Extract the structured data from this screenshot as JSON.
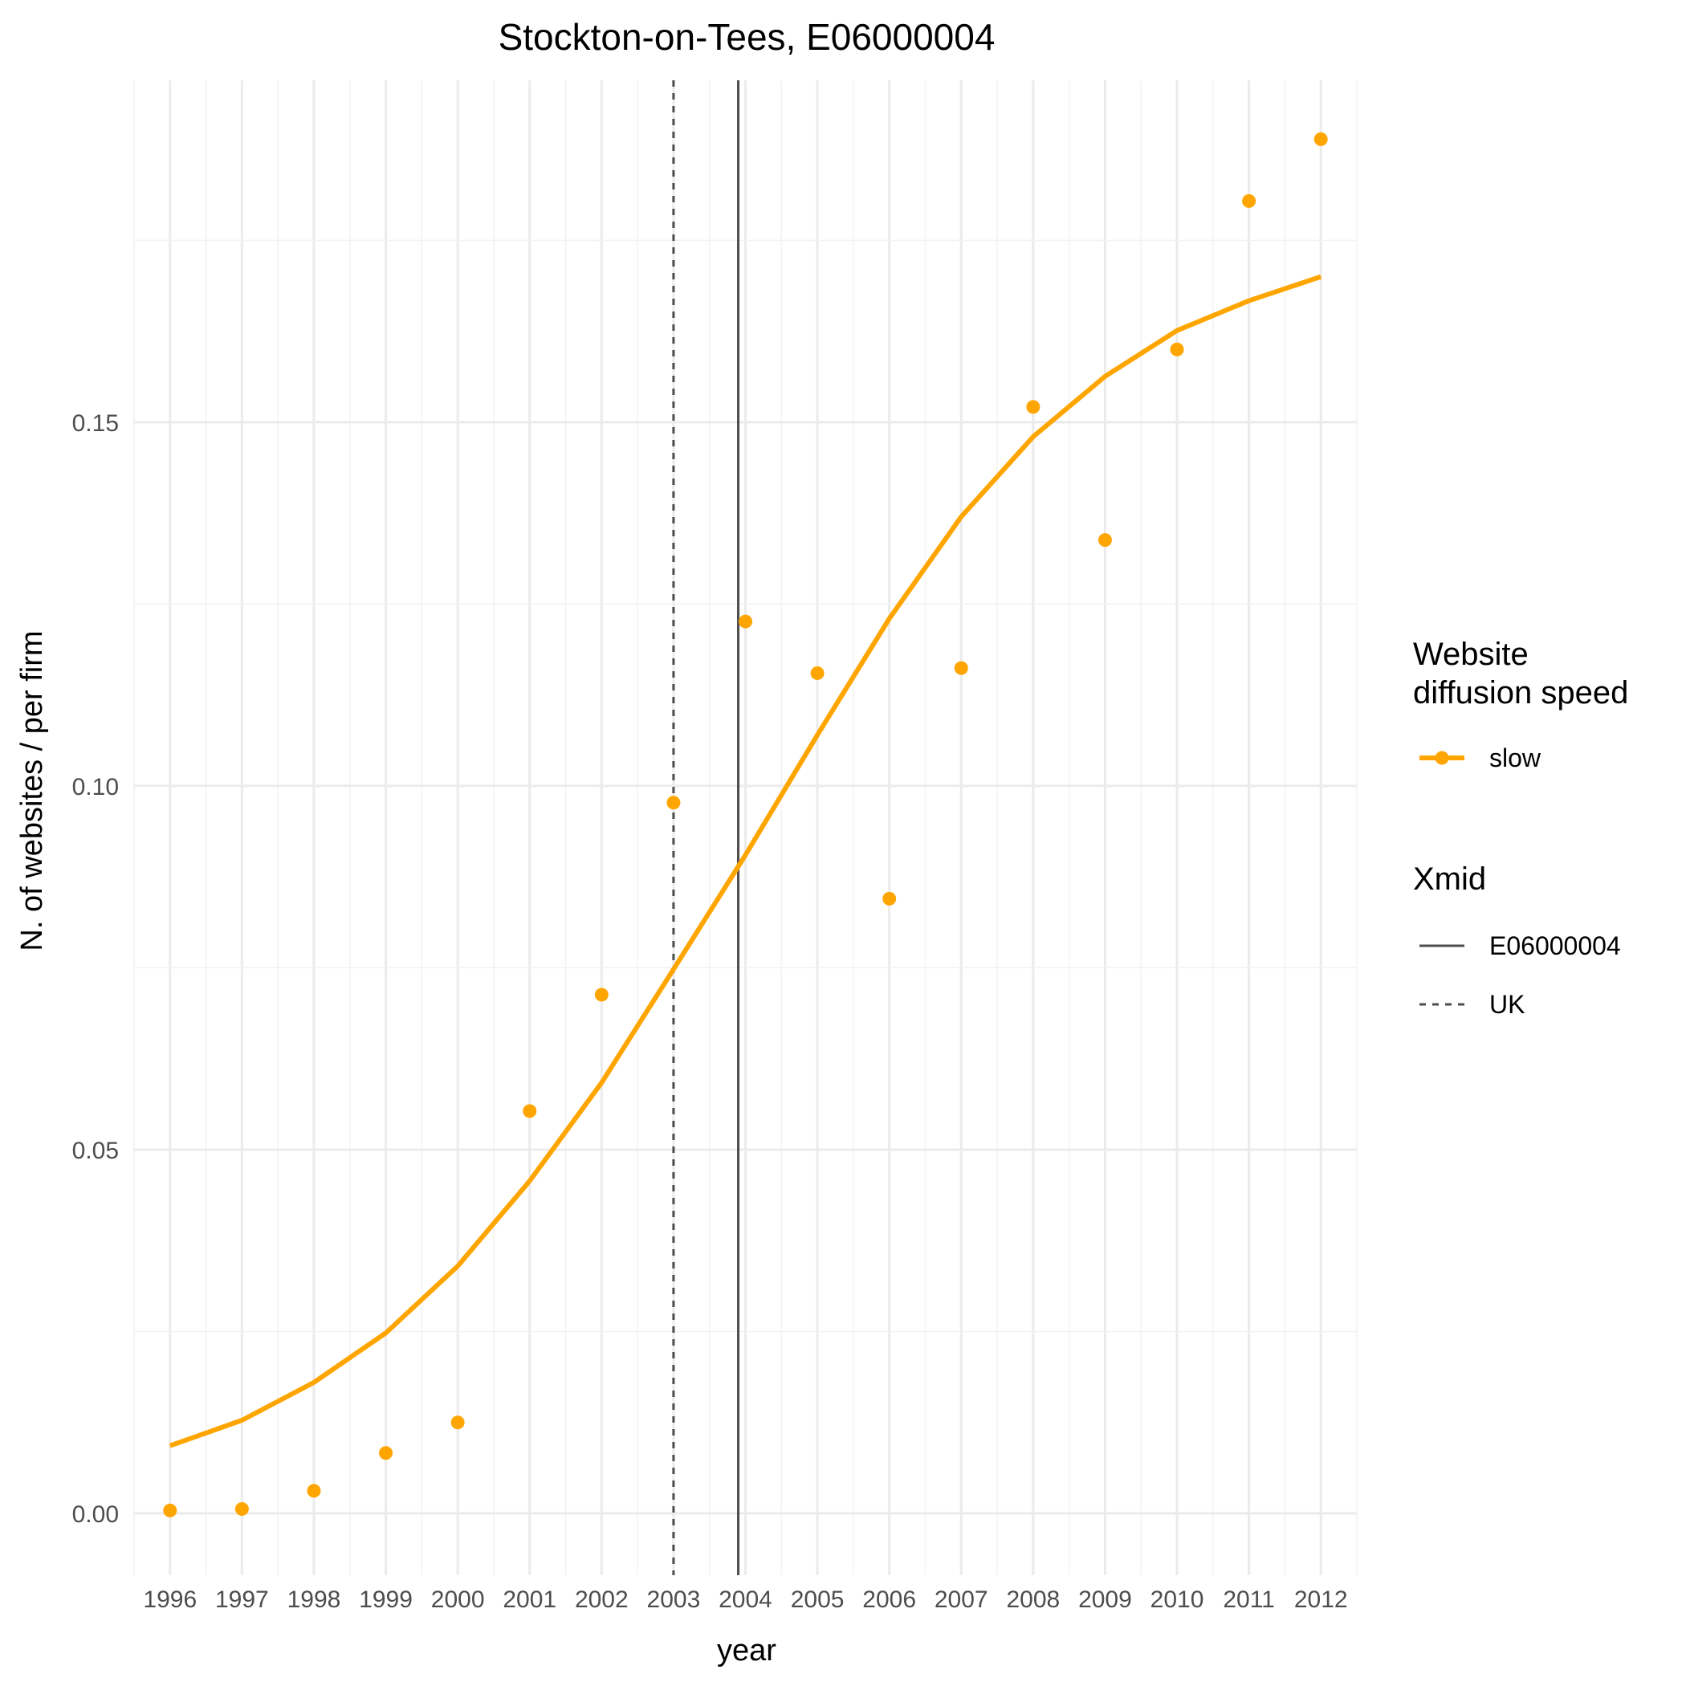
{
  "chart_data": {
    "type": "line",
    "title": "Stockton-on-Tees, E06000004",
    "xlabel": "year",
    "ylabel": "N. of websites / per firm",
    "x": [
      1996,
      1997,
      1998,
      1999,
      2000,
      2001,
      2002,
      2003,
      2004,
      2005,
      2006,
      2007,
      2008,
      2009,
      2010,
      2011,
      2012
    ],
    "x_tick_labels": [
      "1996",
      "1997",
      "1998",
      "1999",
      "2000",
      "2001",
      "2002",
      "2003",
      "2004",
      "2005",
      "2006",
      "2007",
      "2008",
      "2009",
      "2010",
      "2011",
      "2012"
    ],
    "y_ticks": [
      0.0,
      0.05,
      0.1,
      0.15
    ],
    "y_tick_labels": [
      "0.00",
      "0.05",
      "0.10",
      "0.15"
    ],
    "xlim": [
      1995.5,
      2012.5
    ],
    "ylim": [
      -0.0085,
      0.197
    ],
    "grid": true,
    "series": [
      {
        "name": "slow",
        "kind": "points",
        "color": "#FFA500",
        "values": [
          0.0004,
          0.0006,
          0.0031,
          0.0083,
          0.0125,
          0.0553,
          0.0713,
          0.0977,
          0.1226,
          0.1155,
          0.0845,
          0.1162,
          0.1521,
          0.1338,
          0.16,
          0.1804,
          0.1889
        ]
      },
      {
        "name": "slow",
        "kind": "fitted-line",
        "color": "#FFA500",
        "values": [
          0.0093,
          0.0128,
          0.018,
          0.0248,
          0.034,
          0.0457,
          0.0592,
          0.0748,
          0.0905,
          0.107,
          0.123,
          0.137,
          0.148,
          0.1563,
          0.1626,
          0.1667,
          0.17
        ]
      }
    ],
    "vlines": [
      {
        "name": "E06000004",
        "x": 2003.9,
        "linetype": "solid",
        "color": "#4d4d4d"
      },
      {
        "name": "UK",
        "x": 2003.0,
        "linetype": "dashed",
        "color": "#4d4d4d"
      }
    ],
    "legend": {
      "placement": "right",
      "groups": [
        {
          "title": "Website\ndiffusion speed",
          "title_lines": [
            "Website",
            "diffusion speed"
          ],
          "entries": [
            "slow"
          ]
        },
        {
          "title": "Xmid",
          "title_lines": [
            "Xmid"
          ],
          "entries": [
            "E06000004",
            "UK"
          ]
        }
      ]
    }
  }
}
